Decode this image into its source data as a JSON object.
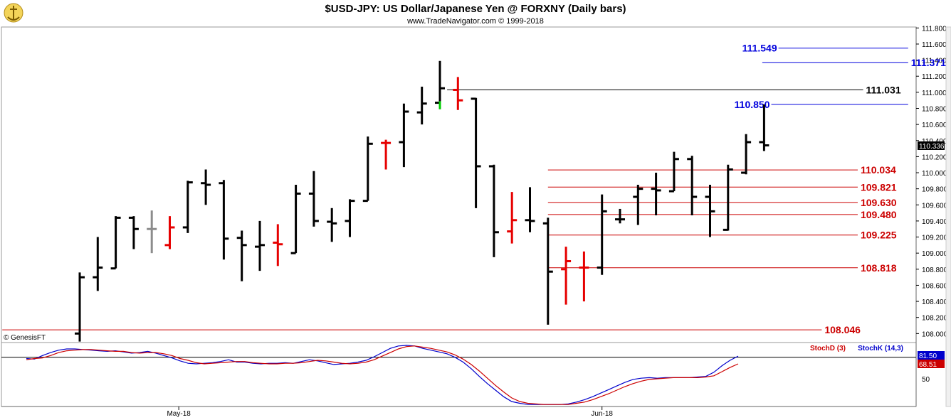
{
  "header": {
    "title": "$USD-JPY:  US Dollar/Japanese Yen @ FORXNY  (Daily bars)",
    "subtitle": "www.TradeNavigator.com © 1999-2018",
    "logo_icon": "trade-navigator-logo-icon"
  },
  "watermark": "© GenesisFT",
  "last_price_badge": "110.336",
  "stoch_legend": {
    "d_label": "StochD (3)",
    "k_label": "StochK (14,3)",
    "d_value": "68.51",
    "k_value": "81.50",
    "mid_label": "50"
  },
  "colors": {
    "up": "#000000",
    "down": "#e60000",
    "neutral": "#8c8c8c",
    "green": "#00cc00",
    "blue_level": "#0000dd",
    "red_level": "#cc0000",
    "black_level": "#000000"
  },
  "chart_data": [
    {
      "type": "ohlc",
      "title": "$USD-JPY:  US Dollar/Japanese Yen @ FORXNY  (Daily bars)",
      "ylim": [
        107.95,
        111.75
      ],
      "yticks": [
        "108.000",
        "108.200",
        "108.400",
        "108.600",
        "108.800",
        "109.000",
        "109.200",
        "109.400",
        "109.600",
        "109.800",
        "110.000",
        "110.200",
        "110.400",
        "110.600",
        "110.800",
        "111.000",
        "111.200",
        "111.400",
        "111.600",
        "111.800"
      ],
      "xlabels": [
        {
          "text": "May-18",
          "bar": 5.5
        },
        {
          "text": "Jun-18",
          "bar": 29
        }
      ],
      "bars": [
        {
          "o": 108.0,
          "h": 108.76,
          "l": 107.9,
          "c": 108.7,
          "color": "up"
        },
        {
          "o": 108.7,
          "h": 109.2,
          "l": 108.53,
          "c": 108.82,
          "color": "up"
        },
        {
          "o": 108.81,
          "h": 109.46,
          "l": 108.81,
          "c": 109.44,
          "color": "up"
        },
        {
          "o": 109.44,
          "h": 109.46,
          "l": 109.05,
          "c": 109.3,
          "color": "up"
        },
        {
          "o": 109.3,
          "h": 109.53,
          "l": 109.0,
          "c": 109.3,
          "color": "neutral"
        },
        {
          "o": 109.1,
          "h": 109.46,
          "l": 109.05,
          "c": 109.32,
          "color": "down"
        },
        {
          "o": 109.32,
          "h": 109.9,
          "l": 109.25,
          "c": 109.88,
          "color": "up"
        },
        {
          "o": 109.87,
          "h": 110.04,
          "l": 109.6,
          "c": 109.85,
          "color": "up"
        },
        {
          "o": 109.87,
          "h": 109.91,
          "l": 108.92,
          "c": 109.18,
          "color": "down-black"
        },
        {
          "o": 109.19,
          "h": 109.28,
          "l": 108.65,
          "c": 109.1,
          "color": "down-black"
        },
        {
          "o": 109.08,
          "h": 109.4,
          "l": 108.78,
          "c": 109.1,
          "color": "up"
        },
        {
          "o": 109.13,
          "h": 109.36,
          "l": 108.84,
          "c": 109.11,
          "color": "down"
        },
        {
          "o": 109.0,
          "h": 109.85,
          "l": 109.0,
          "c": 109.74,
          "color": "up"
        },
        {
          "o": 109.74,
          "h": 110.02,
          "l": 109.33,
          "c": 109.4,
          "color": "down-black"
        },
        {
          "o": 109.39,
          "h": 109.56,
          "l": 109.14,
          "c": 109.37,
          "color": "up"
        },
        {
          "o": 109.4,
          "h": 109.67,
          "l": 109.2,
          "c": 109.65,
          "color": "up"
        },
        {
          "o": 109.65,
          "h": 110.45,
          "l": 109.65,
          "c": 110.36,
          "color": "up"
        },
        {
          "o": 110.37,
          "h": 110.41,
          "l": 110.04,
          "c": 110.37,
          "color": "down"
        },
        {
          "o": 110.38,
          "h": 110.86,
          "l": 110.07,
          "c": 110.76,
          "color": "up"
        },
        {
          "o": 110.75,
          "h": 111.07,
          "l": 110.6,
          "c": 110.86,
          "color": "up"
        },
        {
          "o": 110.87,
          "h": 111.39,
          "l": 110.79,
          "c": 111.05,
          "color": "up",
          "low_tail": "green"
        },
        {
          "o": 111.03,
          "h": 111.19,
          "l": 110.78,
          "c": 110.9,
          "color": "down"
        },
        {
          "o": 110.92,
          "h": 110.93,
          "l": 109.56,
          "c": 110.08,
          "color": "down-black"
        },
        {
          "o": 110.08,
          "h": 110.1,
          "l": 108.95,
          "c": 109.26,
          "color": "down-black"
        },
        {
          "o": 109.27,
          "h": 109.76,
          "l": 109.12,
          "c": 109.41,
          "color": "down"
        },
        {
          "o": 109.41,
          "h": 109.82,
          "l": 109.26,
          "c": 109.4,
          "color": "up"
        },
        {
          "o": 109.37,
          "h": 109.44,
          "l": 108.11,
          "c": 108.77,
          "color": "down-black"
        },
        {
          "o": 108.8,
          "h": 109.08,
          "l": 108.36,
          "c": 108.9,
          "color": "down"
        },
        {
          "o": 108.82,
          "h": 109.02,
          "l": 108.4,
          "c": 108.82,
          "color": "down"
        },
        {
          "o": 108.82,
          "h": 109.73,
          "l": 108.73,
          "c": 109.52,
          "color": "up"
        },
        {
          "o": 109.42,
          "h": 109.55,
          "l": 109.37,
          "c": 109.42,
          "color": "up"
        },
        {
          "o": 109.7,
          "h": 109.85,
          "l": 109.35,
          "c": 109.8,
          "color": "up"
        },
        {
          "o": 109.8,
          "h": 110.0,
          "l": 109.47,
          "c": 109.78,
          "color": "up"
        },
        {
          "o": 109.77,
          "h": 110.26,
          "l": 109.77,
          "c": 110.17,
          "color": "up"
        },
        {
          "o": 110.17,
          "h": 110.21,
          "l": 109.47,
          "c": 109.7,
          "color": "down-black"
        },
        {
          "o": 109.7,
          "h": 109.85,
          "l": 109.2,
          "c": 109.52,
          "color": "down-black"
        },
        {
          "o": 109.29,
          "h": 110.1,
          "l": 109.28,
          "c": 110.04,
          "color": "up"
        },
        {
          "o": 110.0,
          "h": 110.48,
          "l": 109.98,
          "c": 110.38,
          "color": "up"
        },
        {
          "o": 110.38,
          "h": 110.85,
          "l": 110.27,
          "c": 110.34,
          "color": "down-black"
        }
      ],
      "levels": [
        {
          "value": 111.549,
          "label": "111.549",
          "color": "blue",
          "bar_from": 38.8,
          "bar_to": 46.0,
          "label_side": "left"
        },
        {
          "value": 111.371,
          "label": "111.371",
          "color": "blue",
          "bar_from": 37.9,
          "bar_to": 46.0,
          "label_side": "right"
        },
        {
          "value": 111.031,
          "label": "111.031",
          "color": "black",
          "bar_from": 20.4,
          "bar_to": 43.5,
          "label_side": "right"
        },
        {
          "value": 110.85,
          "label": "110.850",
          "color": "blue",
          "bar_from": 38.4,
          "bar_to": 46.0,
          "label_side": "left"
        },
        {
          "value": 110.034,
          "label": "110.034",
          "color": "red",
          "bar_from": 26.0,
          "bar_to": 43.2,
          "label_side": "right"
        },
        {
          "value": 109.821,
          "label": "109.821",
          "color": "red",
          "bar_from": 26.0,
          "bar_to": 43.2,
          "label_side": "right"
        },
        {
          "value": 109.63,
          "label": "109.630",
          "color": "red",
          "bar_from": 26.0,
          "bar_to": 43.2,
          "label_side": "right"
        },
        {
          "value": 109.48,
          "label": "109.480",
          "color": "red",
          "bar_from": 26.0,
          "bar_to": 43.2,
          "label_side": "right"
        },
        {
          "value": 109.225,
          "label": "109.225",
          "color": "red",
          "bar_from": 26.0,
          "bar_to": 43.2,
          "label_side": "right"
        },
        {
          "value": 108.818,
          "label": "108.818",
          "color": "red",
          "bar_from": 26.0,
          "bar_to": 43.2,
          "label_side": "right"
        },
        {
          "value": 108.046,
          "label": "108.046",
          "color": "red",
          "bar_from": -4.3,
          "bar_to": 41.2,
          "label_side": "right"
        }
      ]
    },
    {
      "type": "line",
      "title": "",
      "ylim": [
        0,
        100
      ],
      "ref_line": 80,
      "yticks": [
        "50"
      ],
      "series": [
        {
          "name": "StochK (14,3)",
          "color": "#0000cc",
          "values": [
            78,
            77,
            83,
            88,
            92,
            94,
            94,
            93,
            92,
            91,
            90,
            91,
            89,
            87,
            88,
            90,
            87,
            83,
            79,
            74,
            70,
            69,
            70,
            71,
            73,
            76,
            72,
            72,
            70,
            69,
            70,
            70,
            71,
            70,
            73,
            76,
            74,
            71,
            68,
            69,
            70,
            72,
            75,
            81,
            88,
            95,
            99,
            100,
            99,
            95,
            92,
            89,
            86,
            80,
            72,
            61,
            48,
            36,
            25,
            14,
            6,
            3,
            1,
            1,
            1,
            1,
            1,
            2,
            5,
            9,
            14,
            20,
            26,
            32,
            38,
            43,
            45,
            46,
            45,
            46,
            46,
            46,
            46,
            47,
            48,
            55,
            66,
            75,
            82
          ]
        },
        {
          "name": "StochD (3)",
          "color": "#cc0000",
          "values": [
            76,
            78,
            79,
            83,
            88,
            91,
            92,
            93,
            93,
            92,
            91,
            90,
            90,
            88,
            87,
            88,
            88,
            86,
            83,
            78,
            75,
            71,
            69,
            70,
            71,
            72,
            73,
            73,
            71,
            70,
            69,
            69,
            70,
            70,
            71,
            73,
            75,
            74,
            72,
            70,
            69,
            70,
            72,
            76,
            82,
            88,
            94,
            98,
            99,
            97,
            95,
            92,
            89,
            84,
            77,
            68,
            57,
            45,
            33,
            22,
            12,
            6,
            3,
            2,
            1,
            1,
            1,
            1,
            3,
            5,
            9,
            14,
            19,
            25,
            31,
            36,
            40,
            43,
            44,
            45,
            46,
            46,
            46,
            46,
            47,
            49,
            56,
            63,
            69
          ]
        }
      ]
    }
  ]
}
